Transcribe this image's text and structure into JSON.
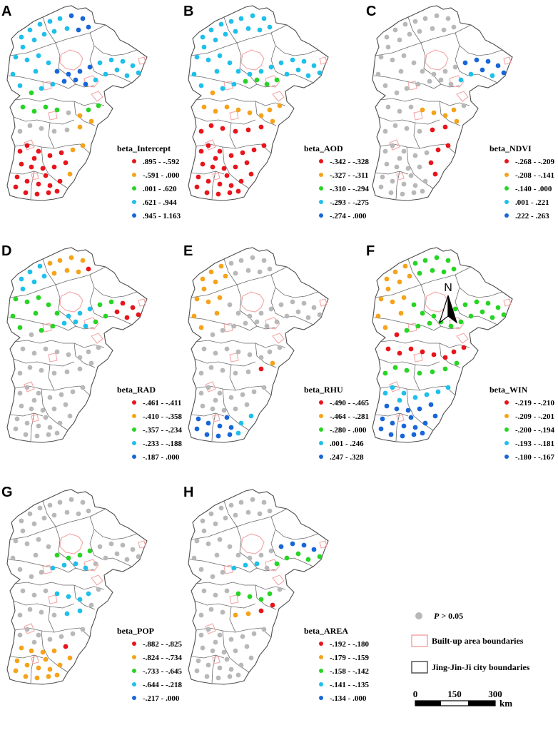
{
  "panels": [
    {
      "label": "A",
      "title": "beta_Intercept",
      "classes": [
        ".895 - -.592",
        "-.591 - .000",
        ".001 - .620",
        ".621 - .944",
        ".945 - 1.163"
      ]
    },
    {
      "label": "B",
      "title": "beta_AOD",
      "classes": [
        "-.342 - -.328",
        "-.327 - -.311",
        "-.310 - -.294",
        "-.293 - -.275",
        "-.274 - .000"
      ]
    },
    {
      "label": "C",
      "title": "beta_NDVI",
      "classes": [
        "-.268 - -.209",
        "-.208 - -.141",
        "-.140 - .000",
        ".001 - .221",
        ".222 - .263"
      ]
    },
    {
      "label": "D",
      "title": "beta_RAD",
      "classes": [
        "-.461 - -.411",
        "-.410 - -.358",
        "-.357 - -.234",
        "-.233 - -.188",
        "-.187 - .000"
      ]
    },
    {
      "label": "E",
      "title": "beta_RHU",
      "classes": [
        "-.490 - -.465",
        "-.464 - -.281",
        "-.280 - .000",
        ".001 - .246",
        ".247 - .328"
      ]
    },
    {
      "label": "F",
      "title": "beta_WIN",
      "classes": [
        "-.219 - -.210",
        "-.209 - -.201",
        "-.200 - -.194",
        "-.193 - -.181",
        "-.180 - -.167"
      ]
    },
    {
      "label": "G",
      "title": "beta_POP",
      "classes": [
        "-.882 - -.825",
        "-.824 - -.734",
        "-.733 - -.645",
        "-.644 - -.218",
        "-.217 - .000"
      ]
    },
    {
      "label": "H",
      "title": "beta_AREA",
      "classes": [
        "-.192 - -.180",
        "-.179 - -.159",
        "-.158 - -.142",
        "-.141 - -.135",
        "-.134 - .000"
      ]
    }
  ],
  "class_colors": [
    "#e8141b",
    "#f5a31a",
    "#27d424",
    "#1ec0ea",
    "#1866d8"
  ],
  "nonsig_color": "#b8b8b8",
  "north_label": "N",
  "key": {
    "pvalue_prefix": "P",
    "pvalue_suffix": " > 0.05",
    "builtup_label": "Built-up area boundaries",
    "city_label": "Jing-Jin-Ji city boundaries",
    "builtup_color": "#f4a6a6",
    "city_color": "#555555"
  },
  "scale": {
    "ticks": [
      "0",
      "150",
      "300"
    ],
    "unit": "km"
  }
}
